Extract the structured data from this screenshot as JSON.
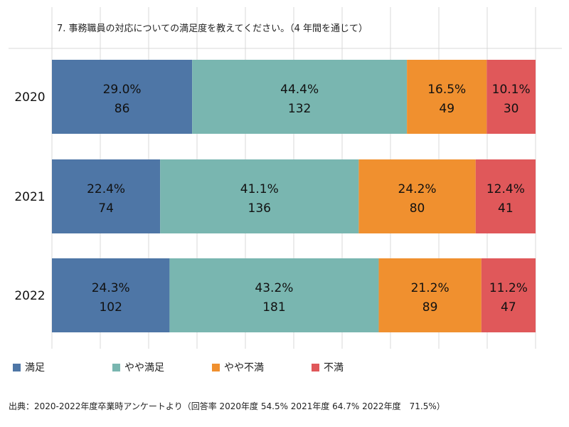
{
  "title": "7. 事務職員の対応についての満足度を教えてください。（4 年間を通じて）",
  "source": "出典：2020-2022年度卒業時アンケートより（回答率 2020年度 54.5% 2021年度 64.7% 2022年度　71.5%）",
  "colors": {
    "satisfied": "#4e76a6",
    "somewhat_satisfied": "#79b6b0",
    "somewhat_dissatisfied": "#f0902f",
    "dissatisfied": "#e0585a"
  },
  "chart_data": {
    "type": "bar",
    "orientation": "horizontal",
    "stacked": "percent",
    "title": "7. 事務職員の対応についての満足度を教えてください。（4 年間を通じて）",
    "categories": [
      "2020",
      "2021",
      "2022"
    ],
    "series": [
      {
        "name": "満足",
        "color": "#4e76a6",
        "percent": [
          29.0,
          22.4,
          24.3
        ],
        "counts": [
          86,
          74,
          102
        ],
        "percent_labels": [
          "29.0%",
          "22.4%",
          "24.3%"
        ],
        "count_labels": [
          "86",
          "74",
          "102"
        ]
      },
      {
        "name": "やや満足",
        "color": "#79b6b0",
        "percent": [
          44.4,
          41.1,
          43.2
        ],
        "counts": [
          132,
          136,
          181
        ],
        "percent_labels": [
          "44.4%",
          "41.1%",
          "43.2%"
        ],
        "count_labels": [
          "132",
          "136",
          "181"
        ]
      },
      {
        "name": "やや不満",
        "color": "#f0902f",
        "percent": [
          16.5,
          24.2,
          21.2
        ],
        "counts": [
          49,
          80,
          89
        ],
        "percent_labels": [
          "16.5%",
          "24.2%",
          "21.2%"
        ],
        "count_labels": [
          "49",
          "80",
          "89"
        ]
      },
      {
        "name": "不満",
        "color": "#e0585a",
        "percent": [
          10.1,
          12.4,
          11.2
        ],
        "counts": [
          30,
          41,
          47
        ],
        "percent_labels": [
          "10.1%",
          "12.4%",
          "11.2%"
        ],
        "count_labels": [
          "30",
          "41",
          "47"
        ]
      }
    ],
    "xlim": [
      0,
      100
    ],
    "grid": true,
    "legend_position": "bottom"
  }
}
